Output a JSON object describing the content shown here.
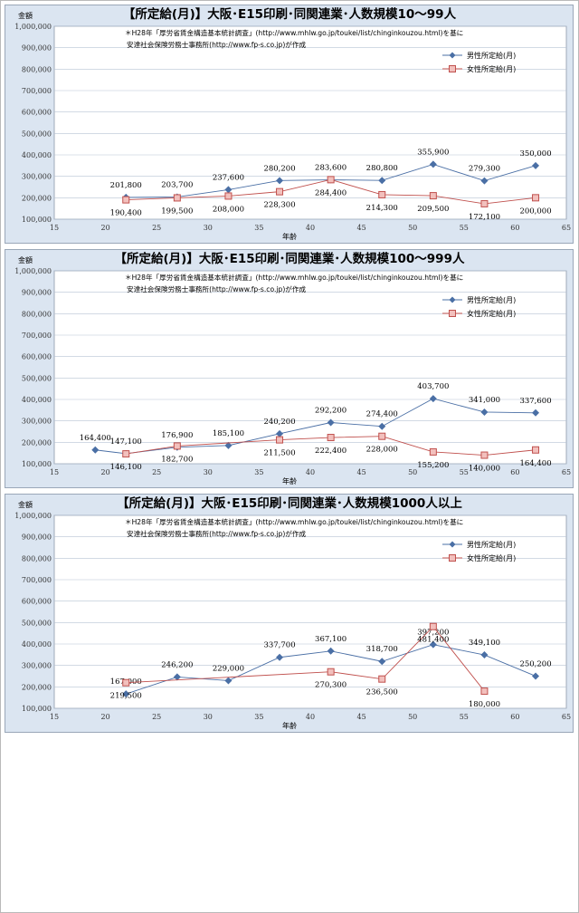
{
  "colors": {
    "male": "#4a6fa5",
    "female": "#c0504d",
    "female_fill": "#f2c0bd",
    "panel_bg": "#dbe5f1",
    "grid": "#b8c4d4"
  },
  "chart_data": [
    {
      "type": "line",
      "title": "【所定給(月)】大阪･E15印刷･同関連業･人数規模10～99人",
      "note_line1": "＊H28年「厚労省賃金構造基本統計調査」(http://www.mhlw.go.jp/toukei/list/chinginkouzou.html)を基に",
      "note_line2": "安達社会保険労務士事務所(http://www.fp-s.co.jp)が作成",
      "ylabel": "金額",
      "xlabel": "年齢",
      "xlim": [
        15,
        65
      ],
      "ylim": [
        100000,
        1000000
      ],
      "x_ticks": [
        "15",
        "20",
        "25",
        "30",
        "35",
        "40",
        "45",
        "50",
        "55",
        "60",
        "65"
      ],
      "y_ticks": [
        "100,000",
        "200,000",
        "300,000",
        "400,000",
        "500,000",
        "600,000",
        "700,000",
        "800,000",
        "900,000",
        "1,000,000"
      ],
      "series": [
        {
          "name": "男性所定給(月)",
          "x": [
            22,
            27,
            32,
            37,
            42,
            47,
            52,
            57,
            62
          ],
          "values": [
            201800,
            203700,
            237600,
            280200,
            283600,
            280800,
            355900,
            279300,
            350000
          ],
          "labels": [
            "201,800",
            "203,700",
            "237,600",
            "280,200",
            "283,600",
            "280,800",
            "355,900",
            "279,300",
            "350,000"
          ]
        },
        {
          "name": "女性所定給(月)",
          "x": [
            22,
            27,
            32,
            37,
            42,
            47,
            52,
            57,
            62
          ],
          "values": [
            190400,
            199500,
            208000,
            228300,
            284400,
            214300,
            209500,
            172100,
            200000
          ],
          "labels": [
            "190,400",
            "199,500",
            "208,000",
            "228,300",
            "284,400",
            "214,300",
            "209,500",
            "172,100",
            "200,000"
          ]
        }
      ]
    },
    {
      "type": "line",
      "title": "【所定給(月)】大阪･E15印刷･同関連業･人数規模100～999人",
      "note_line1": "＊H28年「厚労省賃金構造基本統計調査」(http://www.mhlw.go.jp/toukei/list/chinginkouzou.html)を基に",
      "note_line2": "安達社会保険労務士事務所(http://www.fp-s.co.jp)が作成",
      "ylabel": "金額",
      "xlabel": "年齢",
      "xlim": [
        15,
        65
      ],
      "ylim": [
        100000,
        1000000
      ],
      "x_ticks": [
        "15",
        "20",
        "25",
        "30",
        "35",
        "40",
        "45",
        "50",
        "55",
        "60",
        "65"
      ],
      "y_ticks": [
        "100,000",
        "200,000",
        "300,000",
        "400,000",
        "500,000",
        "600,000",
        "700,000",
        "800,000",
        "900,000",
        "1,000,000"
      ],
      "series": [
        {
          "name": "男性所定給(月)",
          "x": [
            19,
            22,
            27,
            32,
            37,
            42,
            47,
            52,
            57,
            62
          ],
          "values": [
            164400,
            147100,
            176900,
            185100,
            240200,
            292200,
            274400,
            403700,
            341000,
            337600
          ],
          "labels": [
            "164,400",
            "147,100",
            "176,900",
            "185,100",
            "240,200",
            "292,200",
            "274,400",
            "403,700",
            "341,000",
            "337,600"
          ]
        },
        {
          "name": "女性所定給(月)",
          "x": [
            22,
            27,
            37,
            42,
            47,
            52,
            57,
            62
          ],
          "values": [
            146100,
            182700,
            211500,
            222400,
            228000,
            155200,
            140000,
            164400
          ],
          "labels": [
            "146,100",
            "182,700",
            "211,500",
            "222,400",
            "228,000",
            "155,200",
            "140,000",
            "164,400"
          ]
        }
      ]
    },
    {
      "type": "line",
      "title": "【所定給(月)】大阪･E15印刷･同関連業･人数規模1000人以上",
      "note_line1": "＊H28年「厚労省賃金構造基本統計調査」(http://www.mhlw.go.jp/toukei/list/chinginkouzou.html)を基に",
      "note_line2": "安達社会保険労務士事務所(http://www.fp-s.co.jp)が作成",
      "ylabel": "金額",
      "xlabel": "年齢",
      "xlim": [
        15,
        65
      ],
      "ylim": [
        100000,
        1000000
      ],
      "x_ticks": [
        "15",
        "20",
        "25",
        "30",
        "35",
        "40",
        "45",
        "50",
        "55",
        "60",
        "65"
      ],
      "y_ticks": [
        "100,000",
        "200,000",
        "300,000",
        "400,000",
        "500,000",
        "600,000",
        "700,000",
        "800,000",
        "900,000",
        "1,000,000"
      ],
      "series": [
        {
          "name": "男性所定給(月)",
          "x": [
            22,
            27,
            32,
            37,
            42,
            47,
            52,
            57,
            62
          ],
          "values": [
            167000,
            246200,
            229000,
            337700,
            367100,
            318700,
            397200,
            349100,
            250200
          ],
          "labels": [
            "167,000",
            "246,200",
            "229,000",
            "337,700",
            "367,100",
            "318,700",
            "397,200",
            "349,100",
            "250,200"
          ]
        },
        {
          "name": "女性所定給(月)",
          "x": [
            22,
            42,
            47,
            52,
            57
          ],
          "values": [
            219500,
            270300,
            236500,
            481400,
            180000
          ],
          "labels": [
            "219,500",
            "270,300",
            "236,500",
            "481,400",
            "180,000"
          ]
        }
      ]
    }
  ]
}
